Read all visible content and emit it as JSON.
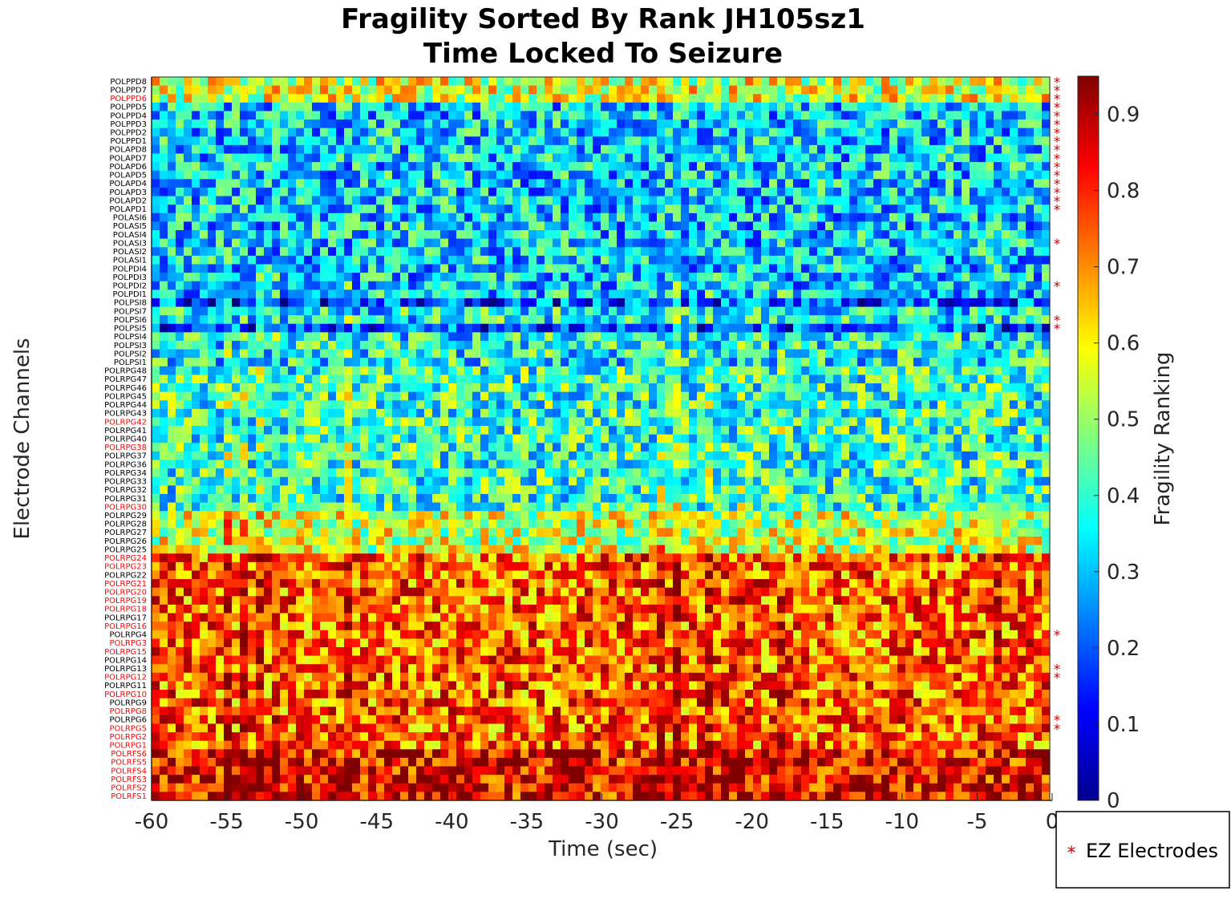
{
  "chart_data": {
    "type": "heatmap",
    "title": [
      "Fragility Sorted By Rank JH105sz1",
      "Time Locked To Seizure"
    ],
    "xlabel": "Time (sec)",
    "ylabel": "Electrode Channels",
    "colorbar_label": "Fragility Ranking",
    "xlim": [
      -60,
      0
    ],
    "xticks": [
      "-60",
      "-55",
      "-50",
      "-45",
      "-40",
      "-35",
      "-30",
      "-25",
      "-20",
      "-15",
      "-10",
      "-5",
      "0"
    ],
    "clim": [
      0,
      0.95
    ],
    "colorbar_ticks": [
      "0",
      "0.1",
      "0.2",
      "0.3",
      "0.4",
      "0.5",
      "0.6",
      "0.7",
      "0.8",
      "0.9"
    ],
    "colormap": "jet",
    "channels": [
      "POLPPD8",
      "POLPPD7",
      "POLPPD6",
      "POLPPD5",
      "POLPPD4",
      "POLPPD3",
      "POLPPD2",
      "POLPPD1",
      "POLAPD8",
      "POLAPD7",
      "POLAPD6",
      "POLAPD5",
      "POLAPD4",
      "POLAPD3",
      "POLAPD2",
      "POLAPD1",
      "POLASI6",
      "POLASI5",
      "POLASI4",
      "POLASI3",
      "POLASI2",
      "POLASI1",
      "POLPDI4",
      "POLPDI3",
      "POLPDI2",
      "POLPDI1",
      "POLPSI8",
      "POLPSI7",
      "POLPSI6",
      "POLPSI5",
      "POLPSI4",
      "POLPSI3",
      "POLPSI2",
      "POLPSI1",
      "POLRPG48",
      "POLRPG47",
      "POLRPG46",
      "POLRPG45",
      "POLRPG44",
      "POLRPG43",
      "POLRPG42",
      "POLRPG41",
      "POLRPG40",
      "POLRPG38",
      "POLRPG37",
      "POLRPG36",
      "POLRPG34",
      "POLRPG33",
      "POLRPG32",
      "POLRPG31",
      "POLRPG30",
      "POLRPG29",
      "POLRPG28",
      "POLRPG27",
      "POLRPG26",
      "POLRPG25",
      "POLRPG24",
      "POLRPG23",
      "POLRPG22",
      "POLRPG21",
      "POLRPG20",
      "POLRPG19",
      "POLRPG18",
      "POLRPG17",
      "POLRPG16",
      "POLRPG4",
      "POLRPG3",
      "POLRPG15",
      "POLRPG14",
      "POLRPG13",
      "POLRPG12",
      "POLRPG11",
      "POLRPG10",
      "POLRPG9",
      "POLRPG8",
      "POLRPG6",
      "POLRPG5",
      "POLRPG2",
      "POLRPG1",
      "POLRFS6",
      "POLRFS5",
      "POLRFS4",
      "POLRFS3",
      "POLRFS2",
      "POLRFS1"
    ],
    "highlighted_channels": [
      "POLPPD6",
      "POLRPG42",
      "POLRPG38",
      "POLRPG30",
      "POLRPG24",
      "POLRPG23",
      "POLRPG21",
      "POLRPG20",
      "POLRPG19",
      "POLRPG18",
      "POLRPG16",
      "POLRPG3",
      "POLRPG15",
      "POLRPG12",
      "POLRPG10",
      "POLRPG8",
      "POLRPG5",
      "POLRPG2",
      "POLRPG1",
      "POLRFS6",
      "POLRFS5",
      "POLRFS4",
      "POLRFS3",
      "POLRFS2",
      "POLRFS1"
    ],
    "ez_marker_channels": [
      "POLPPD8",
      "POLPPD7",
      "POLPPD6",
      "POLPPD5",
      "POLPPD4",
      "POLPPD3",
      "POLPPD2",
      "POLPPD1",
      "POLAPD8",
      "POLAPD7",
      "POLAPD6",
      "POLAPD5",
      "POLAPD4",
      "POLAPD3",
      "POLAPD2",
      "POLAPD1",
      "POLASI3",
      "POLPDI2",
      "POLPSI6",
      "POLPSI5",
      "POLRPG4",
      "POLRPG13",
      "POLRPG12",
      "POLRPG6",
      "POLRPG5"
    ],
    "time_bins": 112,
    "legend": {
      "marker": "*",
      "label": "EZ Electrodes",
      "position": "bottom-right"
    },
    "colors": {
      "highlight_label": "#ff0000",
      "normal_label": "#000000",
      "ez_marker": "#cc0000"
    }
  }
}
